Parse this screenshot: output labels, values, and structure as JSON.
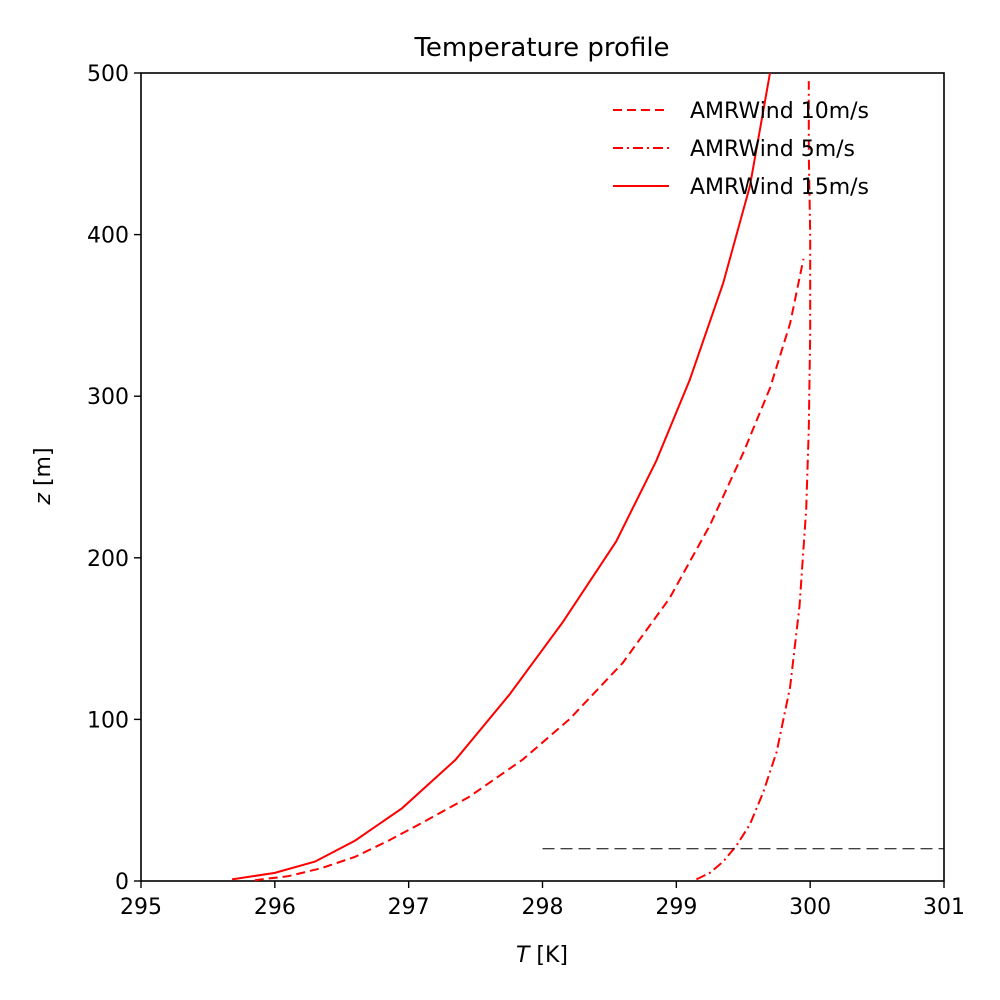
{
  "chart_data": {
    "type": "line",
    "title": "Temperature profile",
    "xlabel": {
      "var": "T",
      "unit": " [K]"
    },
    "ylabel": {
      "var": "z",
      "unit": " [m]"
    },
    "xlim": [
      295,
      301
    ],
    "ylim": [
      0,
      500
    ],
    "xticks": [
      "295",
      "296",
      "297",
      "298",
      "299",
      "300",
      "301"
    ],
    "yticks": [
      "0",
      "100",
      "200",
      "300",
      "400",
      "500"
    ],
    "grid": false,
    "legend_position": "top-right",
    "series": [
      {
        "name": "AMRWind 10m/s",
        "style": "dashed",
        "color": "#ff0000",
        "x": [
          295.85,
          296.1,
          296.35,
          296.6,
          296.85,
          297.1,
          297.45,
          297.85,
          298.2,
          298.6,
          298.95,
          299.25,
          299.5,
          299.7,
          299.85,
          299.95
        ],
        "y": [
          0.5,
          3,
          8,
          15,
          25,
          36,
          52,
          75,
          100,
          135,
          175,
          220,
          265,
          305,
          345,
          385
        ]
      },
      {
        "name": "AMRWind 5m/s",
        "style": "dashdot",
        "color": "#ff0000",
        "x": [
          299.15,
          299.25,
          299.35,
          299.45,
          299.55,
          299.65,
          299.75,
          299.85,
          299.92,
          299.97,
          299.99,
          300.0,
          300.0,
          299.99,
          299.99
        ],
        "y": [
          1,
          5,
          12,
          22,
          35,
          55,
          80,
          120,
          170,
          230,
          280,
          340,
          400,
          450,
          495
        ]
      },
      {
        "name": "AMRWind 15m/s",
        "style": "solid",
        "color": "#ff0000",
        "x": [
          295.68,
          296.0,
          296.3,
          296.6,
          296.95,
          297.35,
          297.75,
          298.15,
          298.55,
          298.85,
          299.1,
          299.35,
          299.55,
          299.7
        ],
        "y": [
          1,
          5,
          12,
          25,
          45,
          75,
          115,
          160,
          210,
          260,
          310,
          370,
          430,
          500
        ]
      },
      {
        "style": "dashed",
        "color": "#000000",
        "x": [
          298,
          301
        ],
        "y": [
          20,
          20
        ]
      }
    ]
  }
}
